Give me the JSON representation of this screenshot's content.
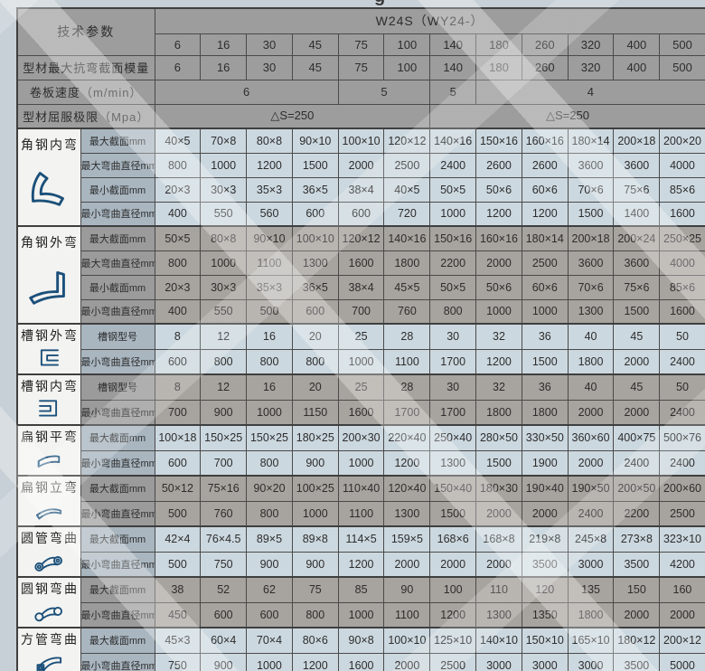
{
  "top_cropped_text": "g",
  "colors": {
    "page_background": "#c7d0d6",
    "header_cell": "#9d9d9d",
    "blue_label_cell": "#a9b6c0",
    "blue_data_cell": "#ccd8df",
    "gray_label_cell": "#9b9b9b",
    "gray_data_cell": "#a7a39e",
    "group_name_cell": "#f3f3f1",
    "grid_border": "#4a4a4a",
    "text": "#2d2d2d",
    "icon_blue": "#1b507a"
  },
  "table": {
    "corner_label": "技术参数",
    "model_header": "W24S（WY24-）",
    "columns": [
      "6",
      "16",
      "30",
      "45",
      "75",
      "100",
      "140",
      "180",
      "260",
      "320",
      "400",
      "500"
    ],
    "spec_rows": [
      {
        "label": "型材最大抗弯截面模量",
        "cells": [
          {
            "text": "6",
            "span": 1
          },
          {
            "text": "16",
            "span": 1
          },
          {
            "text": "30",
            "span": 1
          },
          {
            "text": "45",
            "span": 1
          },
          {
            "text": "75",
            "span": 1
          },
          {
            "text": "100",
            "span": 1
          },
          {
            "text": "140",
            "span": 1
          },
          {
            "text": "180",
            "span": 1
          },
          {
            "text": "260",
            "span": 1
          },
          {
            "text": "320",
            "span": 1
          },
          {
            "text": "400",
            "span": 1
          },
          {
            "text": "500",
            "span": 1
          }
        ]
      },
      {
        "label": "卷板速度（m/min）",
        "cells": [
          {
            "text": "6",
            "span": 4
          },
          {
            "text": "5",
            "span": 2
          },
          {
            "text": "5",
            "span": 1
          },
          {
            "text": "4",
            "span": 5
          }
        ]
      },
      {
        "label": "型材屈服极限（Mpa）",
        "cells": [
          {
            "text": "△S=250",
            "span": 6
          },
          {
            "text": "△S=250",
            "span": 6
          }
        ]
      }
    ],
    "groups": [
      {
        "name": "角钢内弯",
        "icon": "angle-steel-inner-bend-icon",
        "tone": "blue",
        "rows": [
          {
            "label": "最大截面mm",
            "values": [
              "40×5",
              "70×8",
              "80×8",
              "90×10",
              "100×10",
              "120×12",
              "140×16",
              "150×16",
              "160×16",
              "180×14",
              "200×18",
              "200×20"
            ]
          },
          {
            "label": "最大弯曲直径mm",
            "values": [
              "800",
              "1000",
              "1200",
              "1500",
              "2000",
              "2500",
              "2400",
              "2600",
              "2600",
              "3600",
              "3600",
              "4000"
            ]
          },
          {
            "label": "最小截面mm",
            "values": [
              "20×3",
              "30×3",
              "35×3",
              "36×5",
              "38×4",
              "40×5",
              "50×5",
              "50×6",
              "60×6",
              "70×6",
              "75×6",
              "85×6"
            ]
          },
          {
            "label": "最小弯曲直径mm",
            "values": [
              "400",
              "550",
              "560",
              "600",
              "600",
              "720",
              "1000",
              "1200",
              "1200",
              "1500",
              "1400",
              "1600"
            ]
          }
        ]
      },
      {
        "name": "角钢外弯",
        "icon": "angle-steel-outer-bend-icon",
        "tone": "gray",
        "rows": [
          {
            "label": "最大截面mm",
            "values": [
              "50×5",
              "80×8",
              "90×10",
              "100×10",
              "120×12",
              "140×16",
              "150×16",
              "160×16",
              "180×14",
              "200×18",
              "200×24",
              "250×25"
            ]
          },
          {
            "label": "最大弯曲直径mm",
            "values": [
              "800",
              "1000",
              "1100",
              "1300",
              "1600",
              "1800",
              "2200",
              "2000",
              "2500",
              "3600",
              "3600",
              "4000"
            ]
          },
          {
            "label": "最小截面mm",
            "values": [
              "20×3",
              "30×3",
              "35×3",
              "36×5",
              "38×4",
              "45×5",
              "50×5",
              "50×6",
              "60×6",
              "70×6",
              "75×6",
              "85×6"
            ]
          },
          {
            "label": "最小弯曲直径mm",
            "values": [
              "400",
              "550",
              "500",
              "600",
              "700",
              "760",
              "800",
              "1000",
              "1000",
              "1300",
              "1500",
              "1600"
            ]
          }
        ]
      },
      {
        "name": "槽钢外弯",
        "icon": "channel-steel-outer-bend-icon",
        "tone": "blue",
        "rows": [
          {
            "label": "槽钢型号",
            "values": [
              "8",
              "12",
              "16",
              "20",
              "25",
              "28",
              "30",
              "32",
              "36",
              "40",
              "45",
              "50"
            ]
          },
          {
            "label": "最小弯曲直径mm",
            "values": [
              "600",
              "800",
              "800",
              "800",
              "1000",
              "1100",
              "1700",
              "1200",
              "1500",
              "1800",
              "2000",
              "2400"
            ]
          }
        ]
      },
      {
        "name": "槽钢内弯",
        "icon": "channel-steel-inner-bend-icon",
        "tone": "gray",
        "rows": [
          {
            "label": "槽钢型号",
            "values": [
              "8",
              "12",
              "16",
              "20",
              "25",
              "28",
              "30",
              "32",
              "36",
              "40",
              "45",
              "50"
            ]
          },
          {
            "label": "最小弯曲直径mm",
            "values": [
              "700",
              "900",
              "1000",
              "1150",
              "1600",
              "1700",
              "1700",
              "1800",
              "1800",
              "2000",
              "2000",
              "2400"
            ]
          }
        ]
      },
      {
        "name": "扁钢平弯",
        "icon": "flat-steel-flat-bend-icon",
        "tone": "blue",
        "rows": [
          {
            "label": "最大截面mm",
            "values": [
              "100×18",
              "150×25",
              "150×25",
              "180×25",
              "200×30",
              "220×40",
              "250×40",
              "280×50",
              "330×50",
              "360×60",
              "400×75",
              "500×76"
            ]
          },
          {
            "label": "最小弯曲直径mm",
            "values": [
              "600",
              "700",
              "800",
              "900",
              "1000",
              "1200",
              "1300",
              "1500",
              "1900",
              "2000",
              "2400",
              "2400"
            ]
          }
        ]
      },
      {
        "name": "扁钢立弯",
        "icon": "flat-steel-edge-bend-icon",
        "tone": "gray",
        "rows": [
          {
            "label": "最大截面mm",
            "values": [
              "50×12",
              "75×16",
              "90×20",
              "100×25",
              "110×40",
              "120×40",
              "150×40",
              "180×30",
              "190×40",
              "190×50",
              "200×50",
              "200×60"
            ]
          },
          {
            "label": "最小弯曲直径mm",
            "values": [
              "500",
              "760",
              "800",
              "1000",
              "1100",
              "1300",
              "1500",
              "2000",
              "2000",
              "2400",
              "2200",
              "2500"
            ]
          }
        ]
      },
      {
        "name": "圆管弯曲",
        "icon": "round-tube-bend-icon",
        "tone": "blue",
        "rows": [
          {
            "label": "最大截面mm",
            "values": [
              "42×4",
              "76×4.5",
              "89×5",
              "89×8",
              "114×5",
              "159×5",
              "168×6",
              "168×8",
              "219×8",
              "245×8",
              "273×8",
              "323×10"
            ]
          },
          {
            "label": "最小弯曲直径mm",
            "values": [
              "500",
              "750",
              "900",
              "900",
              "1200",
              "2000",
              "2000",
              "2000",
              "3500",
              "3000",
              "3500",
              "4200"
            ]
          }
        ]
      },
      {
        "name": "圆钢弯曲",
        "icon": "round-bar-bend-icon",
        "tone": "gray",
        "rows": [
          {
            "label": "最大截面mm",
            "values": [
              "38",
              "52",
              "62",
              "75",
              "85",
              "90",
              "100",
              "110",
              "120",
              "135",
              "150",
              "160"
            ]
          },
          {
            "label": "最小弯曲直径mm",
            "values": [
              "450",
              "600",
              "600",
              "800",
              "1000",
              "1100",
              "1200",
              "1300",
              "1350",
              "1800",
              "2000",
              "2000"
            ]
          }
        ]
      },
      {
        "name": "方管弯曲",
        "icon": "square-tube-bend-icon",
        "tone": "blue",
        "rows": [
          {
            "label": "最大截面mm",
            "values": [
              "45×3",
              "60×4",
              "70×4",
              "80×6",
              "90×8",
              "100×10",
              "125×10",
              "140×10",
              "150×10",
              "165×10",
              "180×12",
              "200×12"
            ]
          },
          {
            "label": "最小弯曲直径mm",
            "values": [
              "750",
              "900",
              "1000",
              "1200",
              "1600",
              "2000",
              "2500",
              "3000",
              "3000",
              "3000",
              "3500",
              "5000"
            ]
          }
        ]
      }
    ]
  }
}
